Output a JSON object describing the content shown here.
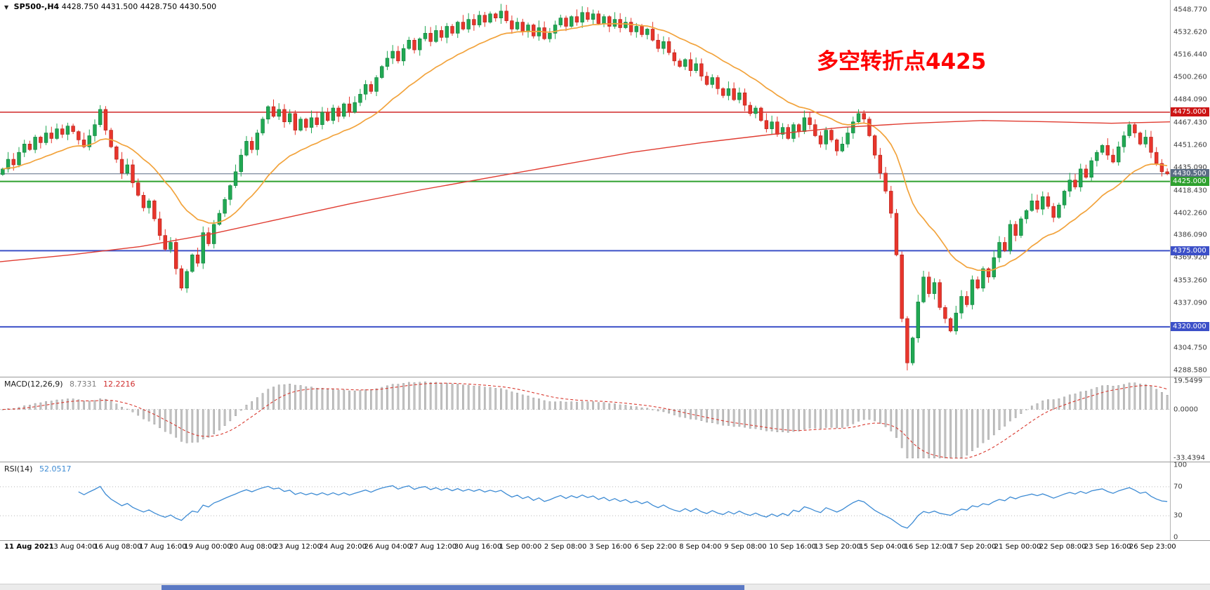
{
  "header": {
    "symbol_period": "SP500-,H4",
    "ohlc": "4428.750 4431.500 4428.750 4430.500",
    "annotation": "多空转折点4425"
  },
  "colors": {
    "up": "#21a853",
    "down": "#e8352c",
    "ma_fast": "#f2a33c",
    "ma_slow": "#e03c31",
    "macd_hist": "#c3c3c3",
    "macd_hist_edge": "#8f8f8f",
    "macd_signal": "#d93a30",
    "rsi": "#3d8bd4",
    "grid_dotted": "#b8b8b8"
  },
  "price_axis": {
    "ticks": [
      4548.77,
      4532.62,
      4516.44,
      4500.26,
      4484.09,
      4467.43,
      4451.26,
      4435.09,
      4418.43,
      4402.26,
      4386.09,
      4369.92,
      4353.26,
      4337.09,
      4304.75,
      4288.58
    ]
  },
  "levels": [
    {
      "price": 4475.0,
      "label": "4475.000",
      "color": "#cc1414",
      "lw": 1.4
    },
    {
      "price": 4430.5,
      "label": "4430.500",
      "color": "#5a6c84",
      "lw": 1
    },
    {
      "price": 4425.0,
      "label": "4425.000",
      "color": "#2fa12f",
      "lw": 2
    },
    {
      "price": 4375.0,
      "label": "4375.000",
      "color": "#3c50c8",
      "lw": 2
    },
    {
      "price": 4320.0,
      "label": "4320.000",
      "color": "#3c50c8",
      "lw": 2
    }
  ],
  "indicators": {
    "macd": {
      "name": "MACD(12,26,9)",
      "value_main": "8.7331",
      "value_signal": "12.2216",
      "axis": [
        "19.5499",
        "0.0000",
        "-33.4394"
      ]
    },
    "rsi": {
      "name": "RSI(14)",
      "value": "52.0517",
      "axis": [
        "100",
        "70",
        "30",
        "0"
      ],
      "dotted_levels": [
        70,
        30
      ]
    }
  },
  "time_axis": {
    "labels": [
      "11 Aug 2021",
      "13 Aug 04:00",
      "16 Aug 08:00",
      "17 Aug 16:00",
      "19 Aug 00:00",
      "20 Aug 08:00",
      "23 Aug 12:00",
      "24 Aug 20:00",
      "26 Aug 04:00",
      "27 Aug 12:00",
      "30 Aug 16:00",
      "1 Sep 00:00",
      "2 Sep 08:00",
      "3 Sep 16:00",
      "6 Sep 22:00",
      "8 Sep 04:00",
      "9 Sep 08:00",
      "10 Sep 16:00",
      "13 Sep 20:00",
      "15 Sep 04:00",
      "16 Sep 12:00",
      "17 Sep 20:00",
      "21 Sep 00:00",
      "22 Sep 08:00",
      "23 Sep 16:00",
      "26 Sep 23:00"
    ]
  },
  "chart_data": [
    {
      "type": "candlestick",
      "title": "SP500-,H4",
      "ylim": [
        4284,
        4556
      ],
      "low_min": 4288.58,
      "estimated": true,
      "closes": [
        4434,
        4441,
        4437,
        4446,
        4452,
        4448,
        4457,
        4453,
        4460,
        4456,
        4463,
        4459,
        4465,
        4461,
        4455,
        4450,
        4458,
        4466,
        4477,
        4462,
        4450,
        4441,
        4431,
        4437,
        4424,
        4415,
        4406,
        4411,
        4398,
        4386,
        4376,
        4381,
        4362,
        4348,
        4360,
        4372,
        4366,
        4388,
        4380,
        4394,
        4402,
        4412,
        4422,
        4432,
        4444,
        4454,
        4448,
        4460,
        4470,
        4479,
        4472,
        4477,
        4468,
        4474,
        4462,
        4470,
        4464,
        4471,
        4466,
        4475,
        4469,
        4478,
        4472,
        4481,
        4475,
        4482,
        4488,
        4495,
        4490,
        4500,
        4508,
        4514,
        4519,
        4512,
        4521,
        4527,
        4520,
        4528,
        4532,
        4526,
        4534,
        4529,
        4537,
        4532,
        4540,
        4535,
        4542,
        4538,
        4545,
        4540,
        4546,
        4543,
        4548,
        4541,
        4535,
        4540,
        4533,
        4538,
        4530,
        4536,
        4528,
        4532,
        4538,
        4543,
        4537,
        4544,
        4540,
        4547,
        4542,
        4546,
        4539,
        4544,
        4537,
        4542,
        4536,
        4540,
        4533,
        4537,
        4531,
        4535,
        4527,
        4521,
        4526,
        4518,
        4512,
        4508,
        4513,
        4505,
        4510,
        4501,
        4495,
        4500,
        4492,
        4487,
        4492,
        4484,
        4489,
        4480,
        4474,
        4478,
        4469,
        4463,
        4468,
        4459,
        4464,
        4456,
        4466,
        4461,
        4471,
        4466,
        4458,
        4452,
        4462,
        4455,
        4447,
        4452,
        4460,
        4468,
        4474,
        4470,
        4458,
        4444,
        4431,
        4418,
        4402,
        4372,
        4326,
        4294,
        4312,
        4338,
        4356,
        4344,
        4352,
        4334,
        4326,
        4317,
        4330,
        4342,
        4336,
        4354,
        4348,
        4362,
        4356,
        4370,
        4381,
        4375,
        4394,
        4386,
        4398,
        4404,
        4411,
        4405,
        4414,
        4407,
        4399,
        4408,
        4418,
        4426,
        4421,
        4434,
        4428,
        4440,
        4446,
        4451,
        4444,
        4439,
        4450,
        4458,
        4466,
        4460,
        4452,
        4457,
        4446,
        4438,
        4432,
        4430.5
      ],
      "ma_fast": {
        "kind": "ema",
        "period": 20
      },
      "ma_slow_anchors": [
        [
          0,
          4367
        ],
        [
          0.06,
          4372
        ],
        [
          0.12,
          4378
        ],
        [
          0.18,
          4387
        ],
        [
          0.24,
          4398
        ],
        [
          0.3,
          4409
        ],
        [
          0.36,
          4419
        ],
        [
          0.42,
          4428
        ],
        [
          0.48,
          4437
        ],
        [
          0.54,
          4446
        ],
        [
          0.6,
          4453
        ],
        [
          0.66,
          4459
        ],
        [
          0.72,
          4464
        ],
        [
          0.78,
          4467
        ],
        [
          0.84,
          4469
        ],
        [
          0.9,
          4468
        ],
        [
          0.95,
          4467
        ],
        [
          1.0,
          4468
        ]
      ]
    },
    {
      "type": "bar",
      "title": "MACD(12,26,9)",
      "derived_from": "closes",
      "params": [
        12,
        26,
        9
      ],
      "ylim": [
        -33.4394,
        19.5499
      ],
      "current_main": 8.7331,
      "current_signal": 12.2216
    },
    {
      "type": "line",
      "title": "RSI(14)",
      "derived_from": "closes",
      "period": 14,
      "ylim": [
        0,
        100
      ],
      "current": 52.0517
    }
  ]
}
